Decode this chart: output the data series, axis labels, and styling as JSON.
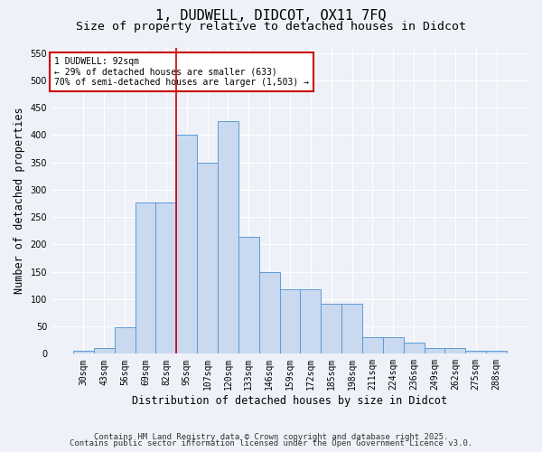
{
  "title_line1": "1, DUDWELL, DIDCOT, OX11 7FQ",
  "title_line2": "Size of property relative to detached houses in Didcot",
  "xlabel": "Distribution of detached houses by size in Didcot",
  "ylabel": "Number of detached properties",
  "categories": [
    "30sqm",
    "43sqm",
    "56sqm",
    "69sqm",
    "82sqm",
    "95sqm",
    "107sqm",
    "120sqm",
    "133sqm",
    "146sqm",
    "159sqm",
    "172sqm",
    "185sqm",
    "198sqm",
    "211sqm",
    "224sqm",
    "236sqm",
    "249sqm",
    "262sqm",
    "275sqm",
    "288sqm"
  ],
  "values": [
    5,
    10,
    48,
    277,
    277,
    400,
    350,
    425,
    213,
    150,
    118,
    118,
    92,
    92,
    30,
    30,
    20,
    10,
    10,
    5,
    5
  ],
  "bar_color": "#c9d9f0",
  "bar_edge_color": "#5b9bd5",
  "ylim": [
    0,
    560
  ],
  "yticks": [
    0,
    50,
    100,
    150,
    200,
    250,
    300,
    350,
    400,
    450,
    500,
    550
  ],
  "vline_x": 4.5,
  "vline_color": "#cc0000",
  "annotation_title": "1 DUDWELL: 92sqm",
  "annotation_line2": "← 29% of detached houses are smaller (633)",
  "annotation_line3": "70% of semi-detached houses are larger (1,503) →",
  "annotation_box_color": "#cc0000",
  "footer_line1": "Contains HM Land Registry data © Crown copyright and database right 2025.",
  "footer_line2": "Contains public sector information licensed under the Open Government Licence v3.0.",
  "bg_color": "#eef2f8",
  "plot_bg_color": "#eef2f8",
  "title_fontsize": 11,
  "subtitle_fontsize": 9.5,
  "tick_fontsize": 7,
  "ylabel_fontsize": 8.5,
  "xlabel_fontsize": 8.5,
  "footer_fontsize": 6.5
}
